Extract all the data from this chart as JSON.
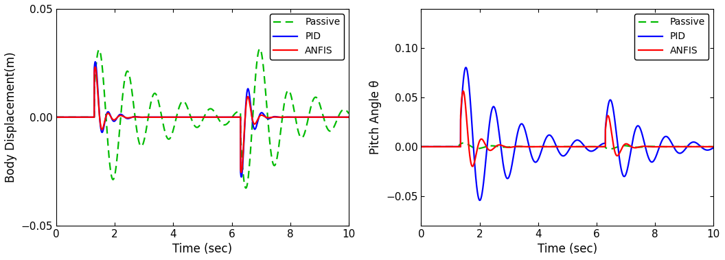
{
  "left_ylabel": "Body Displacement(m)",
  "right_ylabel": "Pitch Angle θ",
  "xlabel": "Time (sec)",
  "xlim": [
    0,
    10
  ],
  "left_ylim": [
    -0.05,
    0.05
  ],
  "right_ylim": [
    -0.08,
    0.14
  ],
  "left_yticks": [
    -0.05,
    0,
    0.05
  ],
  "right_yticks": [
    -0.05,
    0,
    0.05,
    0.1
  ],
  "xticks": [
    0,
    2,
    4,
    6,
    8,
    10
  ],
  "legend_labels": [
    "Passive",
    "PID",
    "ANFIS"
  ],
  "passive_color": "#00bb00",
  "pid_color": "#0000ff",
  "anfis_color": "#ff0000",
  "background_color": "#ffffff",
  "tick_label_size": 11,
  "axis_label_size": 12,
  "legend_fontsize": 10,
  "line_width": 1.6
}
